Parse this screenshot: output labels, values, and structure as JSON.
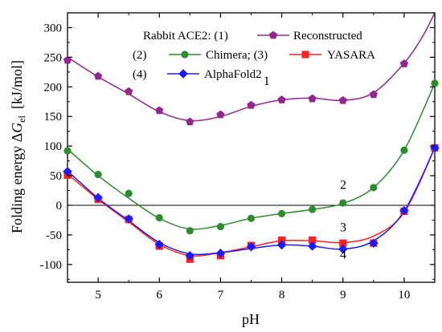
{
  "chart_data": {
    "type": "line",
    "title": "",
    "xlabel": "pH",
    "ylabel_prefix": "Folding energy Δ",
    "ylabel_symbol": "G",
    "ylabel_subscript": "el",
    "ylabel_unit": "[kJ/mol]",
    "xlim": [
      4.5,
      10.5
    ],
    "ylim": [
      -130,
      325
    ],
    "xticks": [
      5,
      6,
      7,
      8,
      9,
      10
    ],
    "yticks": [
      -100,
      -50,
      0,
      50,
      100,
      150,
      200,
      250,
      300
    ],
    "zero_line": true,
    "grid": false,
    "legend": {
      "position": "top-center",
      "header": "Rabbit ACE2: (1)",
      "row2_prefix": "(2)",
      "row2_sep": "Chimera; (3)",
      "row3_prefix": "(4)"
    },
    "series": [
      {
        "name": "Reconstructed",
        "label": "1",
        "color": "#93278f",
        "marker": "pentagon",
        "x": [
          4.5,
          5.0,
          5.5,
          6.0,
          6.5,
          7.0,
          7.5,
          8.0,
          8.5,
          9.0,
          9.5,
          10.0
        ],
        "y": [
          245,
          218,
          192,
          160,
          141,
          153,
          169,
          178,
          180,
          177,
          187,
          239
        ],
        "curve_x": [
          4.5,
          5.0,
          5.5,
          6.0,
          6.5,
          7.0,
          7.5,
          8.0,
          8.5,
          9.0,
          9.5,
          10.0,
          10.3,
          10.5
        ],
        "curve_y": [
          250,
          217,
          188,
          158,
          143,
          150,
          167,
          178,
          181,
          177,
          190,
          240,
          285,
          325
        ]
      },
      {
        "name": "Chimera",
        "label": "2",
        "color": "#2e8b2e",
        "marker": "circle",
        "x": [
          4.5,
          5.0,
          5.5,
          6.0,
          6.5,
          7.0,
          7.5,
          8.0,
          8.5,
          9.0,
          9.5,
          10.0,
          10.5
        ],
        "y": [
          92,
          52,
          20,
          -21,
          -43,
          -36,
          -22,
          -14,
          -7,
          4,
          30,
          93,
          206
        ],
        "curve_x": [
          4.5,
          5.0,
          5.5,
          6.0,
          6.5,
          7.0,
          7.5,
          8.0,
          8.5,
          9.0,
          9.5,
          10.0,
          10.5
        ],
        "curve_y": [
          95,
          50,
          12,
          -22,
          -40,
          -34,
          -22,
          -14,
          -7,
          3,
          30,
          93,
          206
        ]
      },
      {
        "name": "YASARA",
        "label": "3",
        "color": "#ff2020",
        "marker": "square",
        "x": [
          4.5,
          5.0,
          5.5,
          6.0,
          6.5,
          7.0,
          7.5,
          8.0,
          8.5,
          9.0,
          9.5,
          10.0,
          10.5
        ],
        "y": [
          51,
          10,
          -24,
          -69,
          -91,
          -85,
          -68,
          -59,
          -59,
          -64,
          -64,
          -10,
          97
        ],
        "curve_x": [
          4.5,
          5.0,
          5.5,
          6.0,
          6.5,
          7.0,
          7.5,
          8.0,
          8.5,
          9.0,
          9.5,
          10.0,
          10.5
        ],
        "curve_y": [
          53,
          10,
          -28,
          -66,
          -85,
          -80,
          -70,
          -60,
          -60,
          -63,
          -52,
          -12,
          97
        ]
      },
      {
        "name": "AlphaFold2",
        "label": "4",
        "color": "#1a1aff",
        "marker": "diamond",
        "x": [
          4.5,
          5.0,
          5.5,
          6.0,
          6.5,
          7.0,
          7.5,
          8.0,
          8.5,
          9.0,
          9.5,
          10.0,
          10.5
        ],
        "y": [
          57,
          13,
          -23,
          -66,
          -85,
          -81,
          -70,
          -67,
          -69,
          -74,
          -64,
          -9,
          97
        ],
        "curve_x": [
          4.5,
          5.0,
          5.5,
          6.0,
          6.5,
          7.0,
          7.5,
          8.0,
          8.5,
          9.0,
          9.5,
          10.0,
          10.5
        ],
        "curve_y": [
          58,
          12,
          -26,
          -63,
          -82,
          -80,
          -73,
          -67,
          -69,
          -74,
          -60,
          -10,
          97
        ]
      }
    ]
  }
}
